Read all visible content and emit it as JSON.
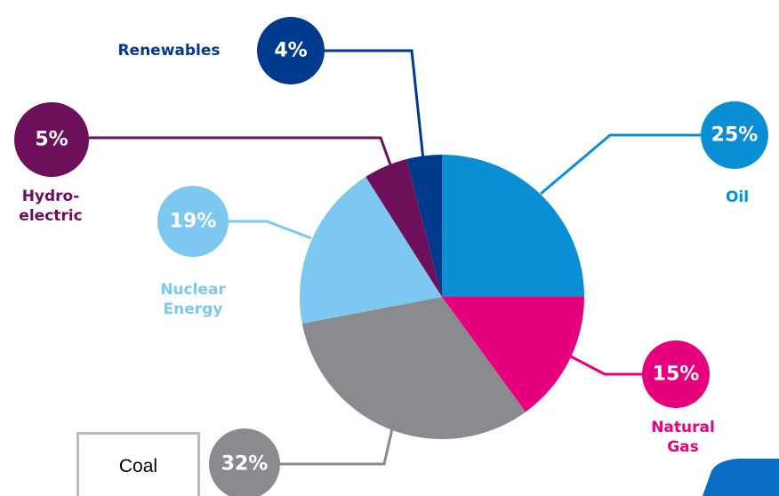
{
  "chart_data": {
    "type": "pie",
    "categories": [
      "Oil",
      "Natural\nGas",
      "Coal",
      "Nuclear\nEnergy",
      "Hydro-\nelectric",
      "Renewables"
    ],
    "values": [
      25,
      15,
      32,
      19,
      5,
      4
    ],
    "value_labels": [
      "25%",
      "15%",
      "32%",
      "19%",
      "5%",
      "4%"
    ],
    "colors": [
      "#0a8fd4",
      "#e6007e",
      "#898b8e",
      "#7dc8f0",
      "#6d0f5a",
      "#003a8c"
    ],
    "start_angle": 90,
    "direction": "clockwise"
  }
}
